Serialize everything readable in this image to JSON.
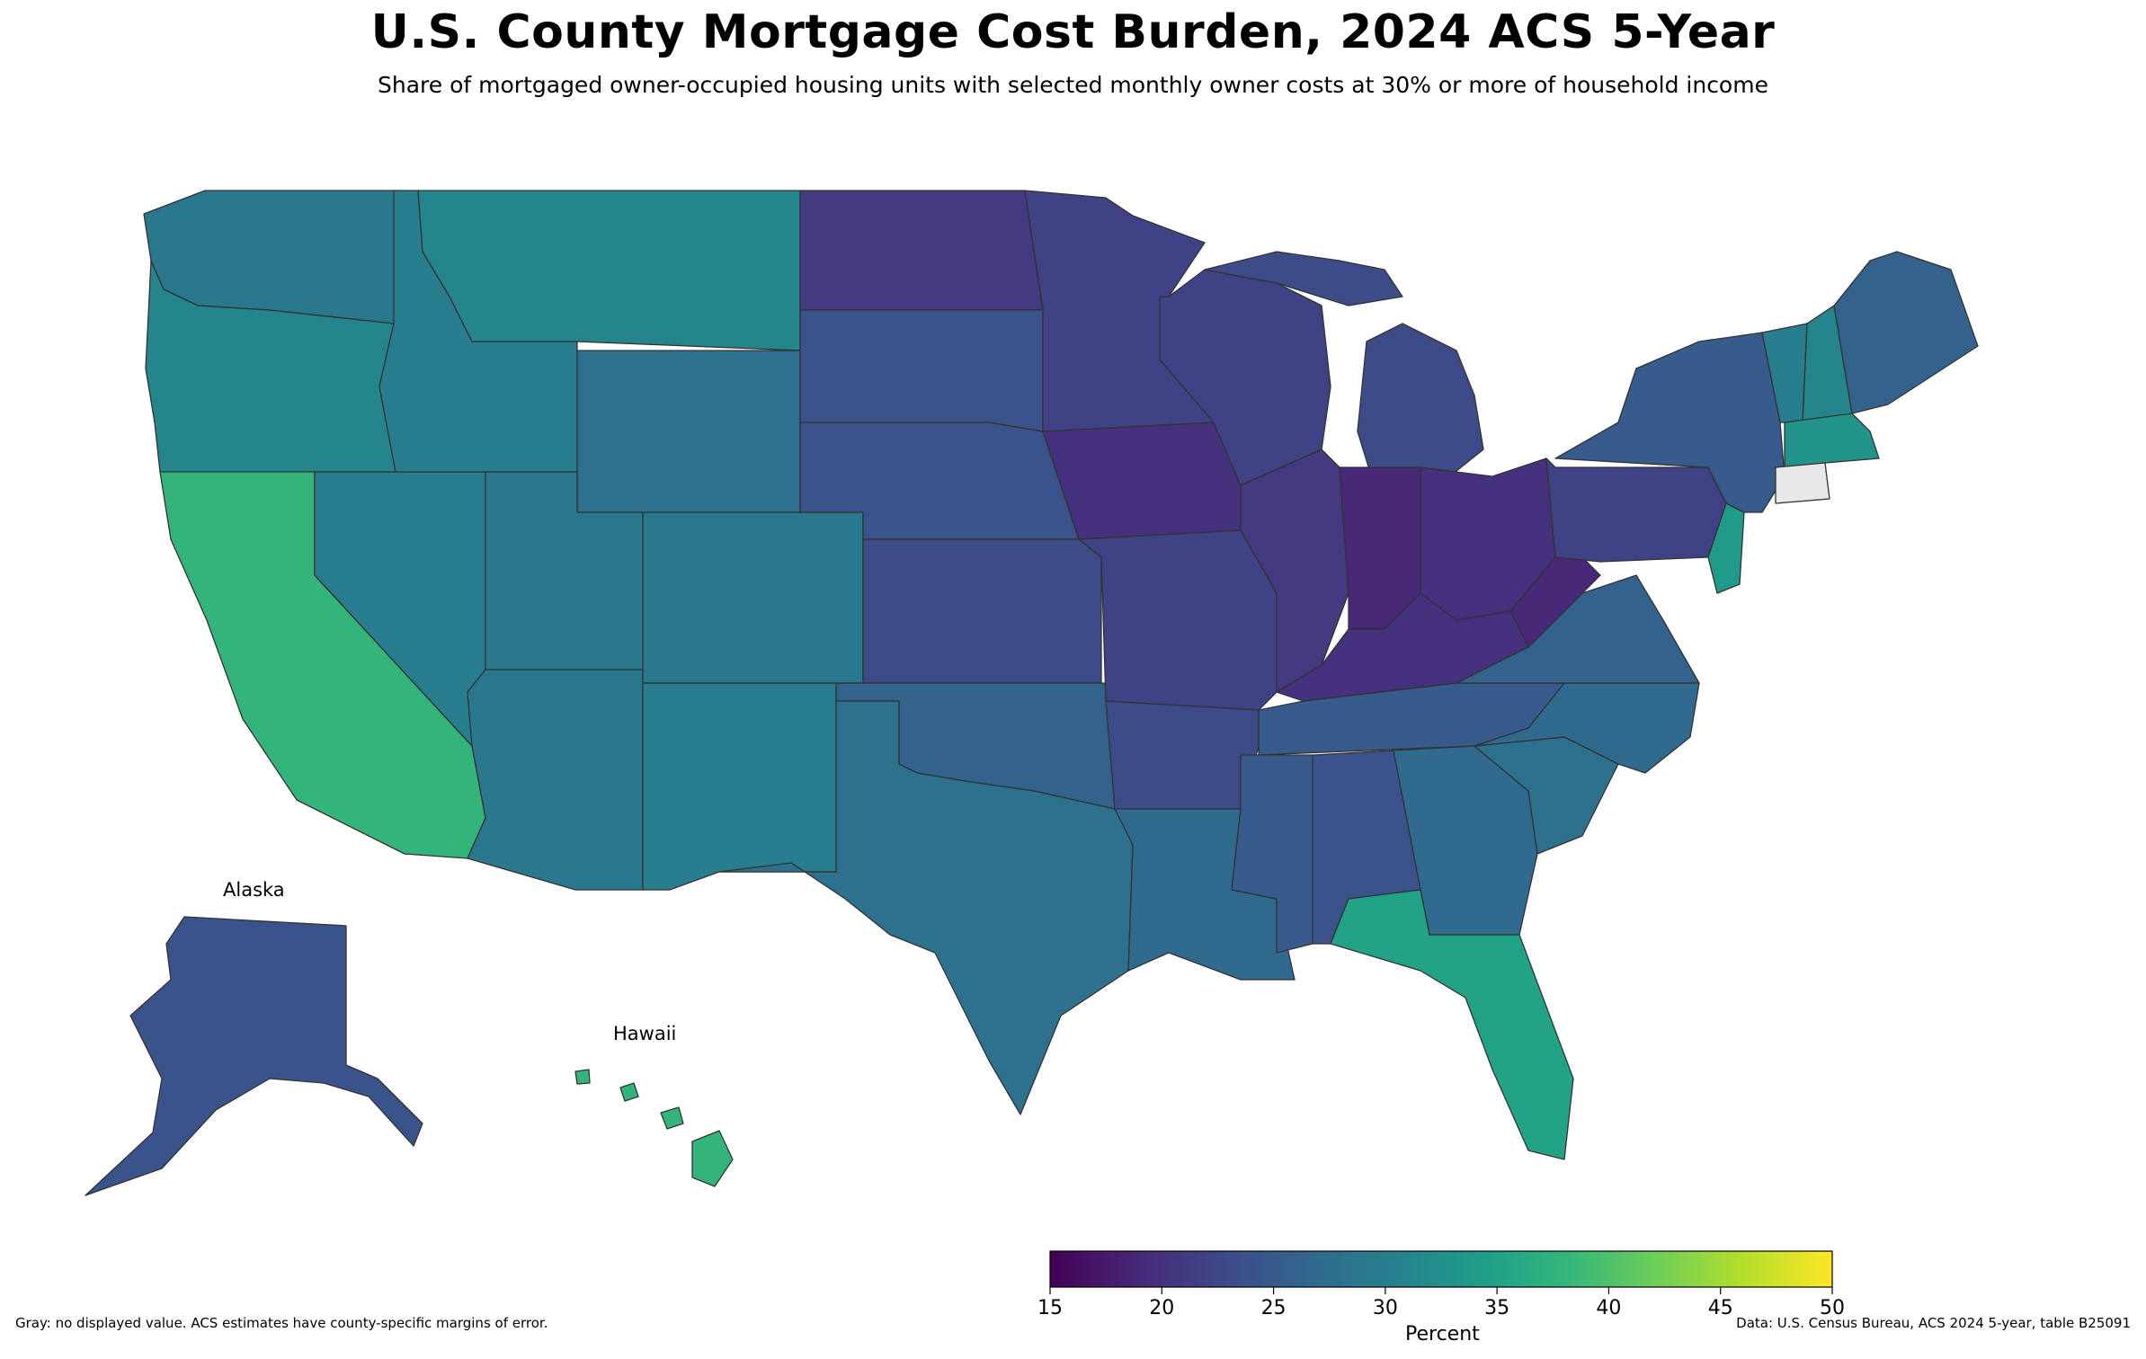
{
  "title": "U.S. County Mortgage Cost Burden, 2024 ACS 5-Year",
  "subtitle": "Share of mortgaged owner-occupied housing units with selected monthly owner costs at 30% or more of household income",
  "insets": {
    "alaska": "Alaska",
    "hawaii": "Hawaii"
  },
  "colorbar": {
    "label": "Percent",
    "min": 15,
    "max": 50,
    "ticks": [
      "15",
      "20",
      "25",
      "30",
      "35",
      "40",
      "45",
      "50"
    ],
    "colormap": "viridis",
    "stops": [
      "#440154",
      "#482878",
      "#3e4989",
      "#31688e",
      "#26828e",
      "#1f9e89",
      "#35b779",
      "#6ece58",
      "#b5de2b",
      "#fde725"
    ]
  },
  "no_data_color": "#e8e8e8",
  "footnote_left": "Gray: no displayed value. ACS estimates have county-specific margins of error.",
  "footnote_right": "Data: U.S. Census Bureau, ACS 2024 5-year, table B25091",
  "regions": [
    {
      "name": "Washington",
      "value": 29
    },
    {
      "name": "Oregon",
      "value": 31
    },
    {
      "name": "California",
      "value": 38
    },
    {
      "name": "Nevada",
      "value": 30
    },
    {
      "name": "Idaho",
      "value": 30
    },
    {
      "name": "Montana",
      "value": 31
    },
    {
      "name": "Wyoming",
      "value": 28
    },
    {
      "name": "Utah",
      "value": 29
    },
    {
      "name": "Arizona",
      "value": 29
    },
    {
      "name": "Colorado",
      "value": 29
    },
    {
      "name": "New Mexico",
      "value": 30
    },
    {
      "name": "North Dakota",
      "value": 21
    },
    {
      "name": "South Dakota",
      "value": 24
    },
    {
      "name": "Nebraska",
      "value": 24
    },
    {
      "name": "Kansas",
      "value": 23
    },
    {
      "name": "Oklahoma",
      "value": 26
    },
    {
      "name": "Texas",
      "value": 28
    },
    {
      "name": "Minnesota",
      "value": 22
    },
    {
      "name": "Iowa",
      "value": 20
    },
    {
      "name": "Missouri",
      "value": 22
    },
    {
      "name": "Arkansas",
      "value": 23
    },
    {
      "name": "Louisiana",
      "value": 27
    },
    {
      "name": "Wisconsin",
      "value": 22
    },
    {
      "name": "Illinois",
      "value": 21
    },
    {
      "name": "Michigan",
      "value": 23
    },
    {
      "name": "Indiana",
      "value": 19
    },
    {
      "name": "Ohio",
      "value": 20
    },
    {
      "name": "Kentucky",
      "value": 20
    },
    {
      "name": "Tennessee",
      "value": 25
    },
    {
      "name": "Mississippi",
      "value": 25
    },
    {
      "name": "Alabama",
      "value": 24
    },
    {
      "name": "Georgia",
      "value": 27
    },
    {
      "name": "Florida",
      "value": 35
    },
    {
      "name": "South Carolina",
      "value": 28
    },
    {
      "name": "North Carolina",
      "value": 27
    },
    {
      "name": "Virginia",
      "value": 26
    },
    {
      "name": "West Virginia",
      "value": 19
    },
    {
      "name": "Pennsylvania",
      "value": 22
    },
    {
      "name": "New York",
      "value": 25
    },
    {
      "name": "Vermont",
      "value": 30
    },
    {
      "name": "New Hampshire",
      "value": 31
    },
    {
      "name": "Maine",
      "value": 26
    },
    {
      "name": "Massachusetts",
      "value": 33
    },
    {
      "name": "Connecticut",
      "value": null
    },
    {
      "name": "New Jersey",
      "value": 34
    },
    {
      "name": "Alaska",
      "value": 24
    },
    {
      "name": "Hawaii",
      "value": 38
    }
  ]
}
